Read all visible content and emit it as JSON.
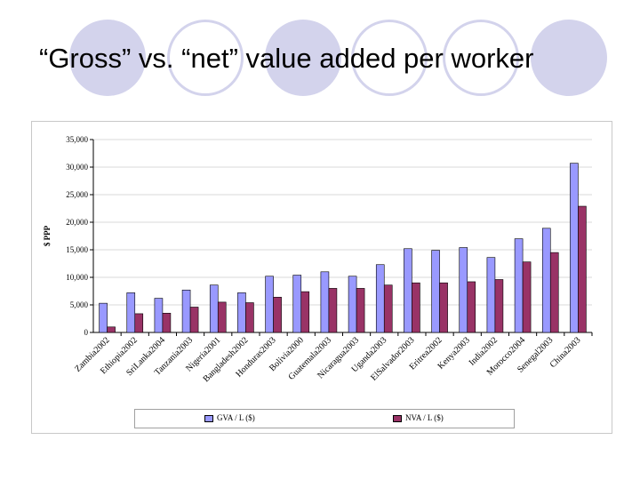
{
  "slide": {
    "title": "“Gross” vs. “net” value added per worker"
  },
  "colors": {
    "gva_fill": "#9999ff",
    "nva_fill": "#993366",
    "decor": "#d3d3ec"
  },
  "chart_data": {
    "type": "bar",
    "title": "",
    "xlabel": "",
    "ylabel": "$ PPP",
    "ylim": [
      0,
      35000
    ],
    "yticks": [
      "0",
      "5,000",
      "10,000",
      "15,000",
      "20,000",
      "25,000",
      "30,000",
      "35,000"
    ],
    "grid": true,
    "legend_position": "bottom",
    "categories": [
      "Zambia2002",
      "Ethiopia2002",
      "SriLanka2004",
      "Tanzania2003",
      "Nigeria2001",
      "Bangladesh2002",
      "Honduras2003",
      "Bolivia2000",
      "Guatemala2003",
      "Nicaragua2003",
      "Uganda2003",
      "ElSalvador2003",
      "Eritrea2002",
      "Kenya2003",
      "India2002",
      "Morocco2004",
      "Senegal2003",
      "China2003"
    ],
    "series": [
      {
        "name": "GVA / L ($)",
        "values": [
          5300,
          7200,
          6200,
          7700,
          8600,
          7200,
          10200,
          10400,
          11000,
          10200,
          12300,
          15200,
          14900,
          15400,
          13600,
          17000,
          18900,
          30700
        ]
      },
      {
        "name": "NVA / L ($)",
        "values": [
          1000,
          3400,
          3500,
          4600,
          5500,
          5400,
          6400,
          7400,
          8000,
          8000,
          8600,
          9000,
          9000,
          9200,
          9600,
          12800,
          14500,
          22900
        ]
      }
    ]
  }
}
